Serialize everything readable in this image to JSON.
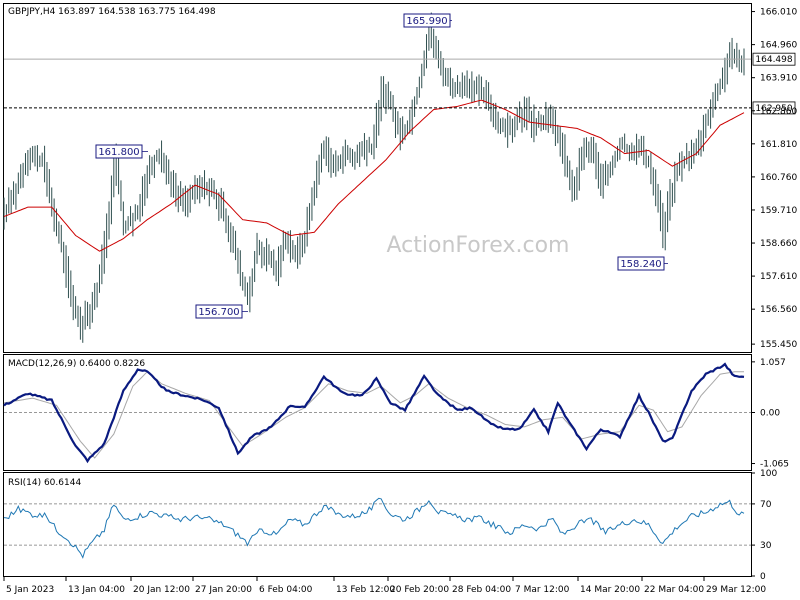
{
  "chart_data": [
    {
      "type": "ohlc",
      "header": "GBPJPY,H4  163.897 164.538 163.775 164.498",
      "watermark": "ActionForex.com",
      "ylim": [
        155.2,
        166.25
      ],
      "y_ticks": [
        "166.010",
        "164.960",
        "163.910",
        "162.860",
        "161.810",
        "160.760",
        "159.710",
        "158.660",
        "157.610",
        "156.560",
        "155.450"
      ],
      "y_tick_values": [
        166.01,
        164.96,
        163.91,
        162.86,
        161.81,
        160.76,
        159.71,
        158.66,
        157.61,
        156.56,
        155.45
      ],
      "price_labels": [
        {
          "text": "164.498",
          "value": 164.498,
          "style": "solid"
        },
        {
          "text": "162.950",
          "value": 162.95,
          "style": "dashed"
        }
      ],
      "annotations": [
        {
          "text": "165.990",
          "value": 165.99,
          "at": "28 Feb 04:00"
        },
        {
          "text": "161.800",
          "value": 161.8,
          "at": "20 Jan 12:00"
        },
        {
          "text": "156.700",
          "value": 156.7,
          "at": "6 Feb 04:00"
        },
        {
          "text": "158.240",
          "value": 158.24,
          "at": "22 Mar 04:00"
        }
      ],
      "close_anchors": [
        [
          0,
          159.6
        ],
        [
          5,
          160.4
        ],
        [
          10,
          161.5
        ],
        [
          16,
          161.2
        ],
        [
          20,
          159.8
        ],
        [
          24,
          158.5
        ],
        [
          28,
          157.0
        ],
        [
          32,
          156.0
        ],
        [
          36,
          156.6
        ],
        [
          40,
          157.5
        ],
        [
          44,
          159.8
        ],
        [
          46,
          161.5
        ],
        [
          50,
          159.2
        ],
        [
          56,
          159.6
        ],
        [
          60,
          160.9
        ],
        [
          64,
          161.5
        ],
        [
          68,
          161.0
        ],
        [
          72,
          160.2
        ],
        [
          76,
          160.0
        ],
        [
          80,
          160.3
        ],
        [
          84,
          160.5
        ],
        [
          88,
          160.2
        ],
        [
          92,
          159.6
        ],
        [
          96,
          158.6
        ],
        [
          100,
          157.3
        ],
        [
          102,
          157.0
        ],
        [
          106,
          158.5
        ],
        [
          110,
          158.3
        ],
        [
          114,
          157.8
        ],
        [
          118,
          158.9
        ],
        [
          122,
          158.2
        ],
        [
          126,
          158.9
        ],
        [
          130,
          160.5
        ],
        [
          134,
          161.8
        ],
        [
          138,
          161.0
        ],
        [
          142,
          161.5
        ],
        [
          146,
          161.3
        ],
        [
          150,
          161.6
        ],
        [
          154,
          161.7
        ],
        [
          158,
          163.5
        ],
        [
          162,
          163.0
        ],
        [
          166,
          162.0
        ],
        [
          170,
          162.6
        ],
        [
          174,
          163.8
        ],
        [
          178,
          165.5
        ],
        [
          182,
          164.4
        ],
        [
          186,
          163.8
        ],
        [
          190,
          163.5
        ],
        [
          194,
          163.6
        ],
        [
          198,
          163.5
        ],
        [
          202,
          163.3
        ],
        [
          206,
          162.6
        ],
        [
          210,
          162.2
        ],
        [
          214,
          162.5
        ],
        [
          218,
          162.9
        ],
        [
          222,
          162.4
        ],
        [
          226,
          162.6
        ],
        [
          230,
          162.5
        ],
        [
          234,
          161.6
        ],
        [
          238,
          160.2
        ],
        [
          242,
          161.5
        ],
        [
          246,
          161.7
        ],
        [
          250,
          160.5
        ],
        [
          254,
          161.0
        ],
        [
          258,
          161.8
        ],
        [
          262,
          161.6
        ],
        [
          266,
          161.7
        ],
        [
          270,
          161.2
        ],
        [
          274,
          160.0
        ],
        [
          276,
          158.9
        ],
        [
          278,
          159.9
        ],
        [
          282,
          161.0
        ],
        [
          286,
          161.4
        ],
        [
          290,
          161.6
        ],
        [
          294,
          162.6
        ],
        [
          298,
          163.3
        ],
        [
          302,
          164.2
        ],
        [
          304,
          164.8
        ],
        [
          308,
          164.2
        ],
        [
          310,
          164.5
        ]
      ],
      "ma_anchors": [
        [
          0,
          159.5
        ],
        [
          10,
          159.8
        ],
        [
          20,
          159.8
        ],
        [
          30,
          158.9
        ],
        [
          40,
          158.4
        ],
        [
          50,
          158.8
        ],
        [
          60,
          159.4
        ],
        [
          70,
          159.9
        ],
        [
          80,
          160.5
        ],
        [
          90,
          160.2
        ],
        [
          100,
          159.4
        ],
        [
          110,
          159.3
        ],
        [
          120,
          158.9
        ],
        [
          130,
          159.0
        ],
        [
          140,
          159.9
        ],
        [
          150,
          160.6
        ],
        [
          160,
          161.3
        ],
        [
          170,
          162.2
        ],
        [
          180,
          162.9
        ],
        [
          190,
          163.0
        ],
        [
          200,
          163.2
        ],
        [
          210,
          162.9
        ],
        [
          220,
          162.5
        ],
        [
          230,
          162.4
        ],
        [
          240,
          162.3
        ],
        [
          250,
          162.0
        ],
        [
          260,
          161.5
        ],
        [
          270,
          161.6
        ],
        [
          280,
          161.1
        ],
        [
          290,
          161.5
        ],
        [
          300,
          162.4
        ],
        [
          310,
          162.8
        ]
      ]
    },
    {
      "type": "line",
      "header": "MACD(12,26,9) 0.6400 0.8226",
      "ylim": [
        -1.2,
        1.2
      ],
      "y_ticks": [
        "1.057",
        "0.00",
        "-1.065"
      ],
      "y_tick_values": [
        1.057,
        0.0,
        -1.065
      ],
      "zero_line": true,
      "macd_anchors": [
        [
          0,
          0.15
        ],
        [
          10,
          0.4
        ],
        [
          20,
          0.25
        ],
        [
          30,
          -0.7
        ],
        [
          35,
          -1.0
        ],
        [
          42,
          -0.65
        ],
        [
          50,
          0.45
        ],
        [
          56,
          0.9
        ],
        [
          60,
          0.85
        ],
        [
          68,
          0.45
        ],
        [
          76,
          0.35
        ],
        [
          84,
          0.25
        ],
        [
          90,
          0.1
        ],
        [
          98,
          -0.85
        ],
        [
          104,
          -0.5
        ],
        [
          112,
          -0.3
        ],
        [
          120,
          0.15
        ],
        [
          126,
          0.1
        ],
        [
          134,
          0.75
        ],
        [
          142,
          0.4
        ],
        [
          150,
          0.35
        ],
        [
          156,
          0.7
        ],
        [
          162,
          0.2
        ],
        [
          168,
          0.05
        ],
        [
          176,
          0.75
        ],
        [
          182,
          0.35
        ],
        [
          190,
          0.05
        ],
        [
          196,
          0.1
        ],
        [
          204,
          -0.25
        ],
        [
          210,
          -0.35
        ],
        [
          216,
          -0.35
        ],
        [
          222,
          0.05
        ],
        [
          228,
          -0.4
        ],
        [
          232,
          0.2
        ],
        [
          236,
          -0.15
        ],
        [
          244,
          -0.75
        ],
        [
          250,
          -0.35
        ],
        [
          258,
          -0.5
        ],
        [
          266,
          0.35
        ],
        [
          270,
          0.0
        ],
        [
          276,
          -0.6
        ],
        [
          280,
          -0.55
        ],
        [
          288,
          0.45
        ],
        [
          294,
          0.8
        ],
        [
          302,
          1.0
        ],
        [
          306,
          0.75
        ]
      ],
      "signal_anchors": [
        [
          0,
          0.2
        ],
        [
          12,
          0.3
        ],
        [
          22,
          0.15
        ],
        [
          32,
          -0.6
        ],
        [
          38,
          -0.95
        ],
        [
          46,
          -0.45
        ],
        [
          54,
          0.55
        ],
        [
          60,
          0.85
        ],
        [
          66,
          0.6
        ],
        [
          76,
          0.4
        ],
        [
          86,
          0.25
        ],
        [
          94,
          -0.3
        ],
        [
          100,
          -0.7
        ],
        [
          108,
          -0.45
        ],
        [
          118,
          -0.1
        ],
        [
          126,
          0.1
        ],
        [
          136,
          0.6
        ],
        [
          144,
          0.45
        ],
        [
          152,
          0.4
        ],
        [
          158,
          0.55
        ],
        [
          166,
          0.2
        ],
        [
          172,
          0.35
        ],
        [
          178,
          0.6
        ],
        [
          186,
          0.3
        ],
        [
          194,
          0.1
        ],
        [
          202,
          -0.05
        ],
        [
          210,
          -0.25
        ],
        [
          218,
          -0.3
        ],
        [
          226,
          -0.15
        ],
        [
          234,
          -0.1
        ],
        [
          242,
          -0.55
        ],
        [
          250,
          -0.45
        ],
        [
          258,
          -0.4
        ],
        [
          266,
          0.15
        ],
        [
          272,
          0.05
        ],
        [
          278,
          -0.4
        ],
        [
          284,
          -0.3
        ],
        [
          292,
          0.35
        ],
        [
          300,
          0.8
        ],
        [
          306,
          0.85
        ]
      ],
      "macd_color": "#0a1a80",
      "signal_color": "#a8a8a8"
    },
    {
      "type": "line",
      "header": "RSI(14) 60.6144",
      "ylim": [
        0,
        100
      ],
      "y_ticks": [
        "100",
        "70",
        "30",
        "0"
      ],
      "y_tick_values": [
        100,
        70,
        30,
        0
      ],
      "levels": [
        70,
        30
      ],
      "rsi_anchors": [
        [
          0,
          55
        ],
        [
          6,
          65
        ],
        [
          12,
          60
        ],
        [
          18,
          58
        ],
        [
          22,
          45
        ],
        [
          26,
          38
        ],
        [
          30,
          28
        ],
        [
          33,
          20
        ],
        [
          36,
          30
        ],
        [
          42,
          45
        ],
        [
          46,
          70
        ],
        [
          50,
          55
        ],
        [
          56,
          58
        ],
        [
          62,
          62
        ],
        [
          68,
          58
        ],
        [
          74,
          55
        ],
        [
          80,
          57
        ],
        [
          86,
          55
        ],
        [
          92,
          50
        ],
        [
          98,
          40
        ],
        [
          102,
          32
        ],
        [
          108,
          45
        ],
        [
          114,
          40
        ],
        [
          120,
          55
        ],
        [
          126,
          50
        ],
        [
          134,
          68
        ],
        [
          140,
          60
        ],
        [
          146,
          58
        ],
        [
          152,
          62
        ],
        [
          158,
          75
        ],
        [
          162,
          60
        ],
        [
          168,
          55
        ],
        [
          174,
          65
        ],
        [
          178,
          75
        ],
        [
          182,
          62
        ],
        [
          188,
          58
        ],
        [
          194,
          55
        ],
        [
          200,
          56
        ],
        [
          206,
          48
        ],
        [
          212,
          42
        ],
        [
          218,
          50
        ],
        [
          224,
          46
        ],
        [
          230,
          55
        ],
        [
          234,
          40
        ],
        [
          240,
          50
        ],
        [
          246,
          55
        ],
        [
          252,
          42
        ],
        [
          258,
          50
        ],
        [
          264,
          55
        ],
        [
          270,
          50
        ],
        [
          276,
          32
        ],
        [
          282,
          48
        ],
        [
          288,
          58
        ],
        [
          294,
          62
        ],
        [
          300,
          70
        ],
        [
          304,
          72
        ],
        [
          308,
          60
        ]
      ],
      "rsi_color": "#1f78b4"
    }
  ],
  "x_axis": {
    "labels": [
      "5 Jan 2023",
      "13 Jan 04:00",
      "20 Jan 12:00",
      "27 Jan 20:00",
      "6 Feb 04:00",
      "13 Feb 12:00",
      "20 Feb 20:00",
      "28 Feb 04:00",
      "7 Mar 12:00",
      "14 Mar 20:00",
      "22 Mar 04:00",
      "29 Mar 12:00"
    ],
    "label_bars": [
      0,
      44,
      88,
      132,
      176,
      220,
      264,
      298,
      336,
      384,
      428,
      476
    ]
  },
  "colors": {
    "price_bars": "#2f4f4f",
    "moving_average": "#cc0000",
    "annotation_border": "#1a1a80",
    "grid_dashed": "#777777"
  }
}
